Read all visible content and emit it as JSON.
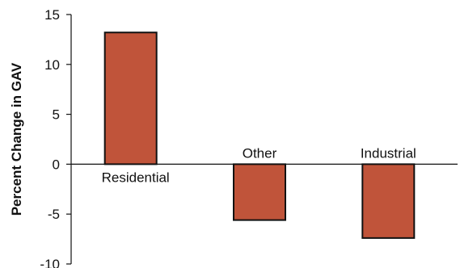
{
  "chart_data": {
    "type": "bar",
    "title": "",
    "xlabel": "",
    "ylabel": "Percent Change in GAV",
    "ylim": [
      -10,
      15
    ],
    "yticks": [
      15,
      10,
      5,
      0,
      -5,
      -10
    ],
    "ytick_labels": [
      "15",
      "10",
      "5",
      "0",
      "-5",
      "-10"
    ],
    "categories": [
      "Residential",
      "Other",
      "Industrial"
    ],
    "values": [
      13.2,
      -5.6,
      -7.4
    ],
    "grid": false,
    "legend": "none",
    "colors": {
      "bar_fill": "#c0543a",
      "bar_stroke": "#111111",
      "axis": "#111111"
    }
  }
}
